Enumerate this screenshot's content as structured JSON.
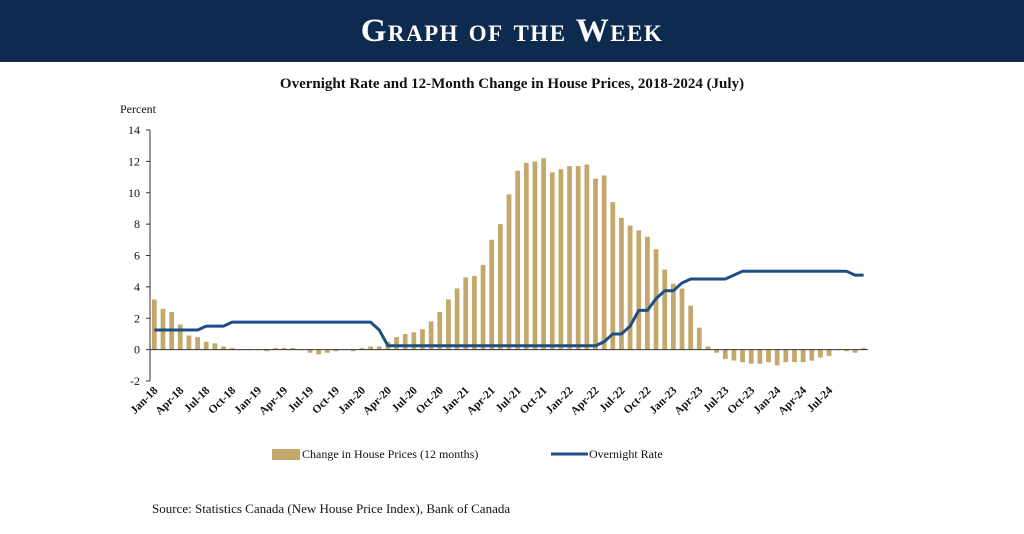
{
  "banner": {
    "title": "Graph of the Week"
  },
  "source": "Source: Statistics Canada (New House Price Index), Bank of Canada",
  "colors": {
    "banner": "#0f2a4f",
    "bars": "#c4a86b",
    "line": "#1d4f85"
  },
  "chart_data": {
    "type": "bar",
    "title": "Overnight Rate and 12-Month Change in House Prices, 2018-2024 (July)",
    "ylabel": "Percent",
    "ylim": [
      -2,
      14
    ],
    "yticks": [
      14,
      12,
      10,
      8,
      6,
      4,
      2,
      0,
      -2
    ],
    "grid": false,
    "legend_position": "bottom",
    "x_tick_labels": [
      "Jan-18",
      "Apr-18",
      "Jul-18",
      "Oct-18",
      "Jan-19",
      "Apr-19",
      "Jul-19",
      "Oct-19",
      "Jan-20",
      "Apr-20",
      "Jul-20",
      "Oct-20",
      "Jan-21",
      "Apr-21",
      "Jul-21",
      "Oct-21",
      "Jan-22",
      "Apr-22",
      "Jul-22",
      "Oct-22",
      "Jan-23",
      "Apr-23",
      "Jul-23",
      "Oct-23",
      "Jan-24",
      "Apr-24",
      "Jul-24"
    ],
    "series": [
      {
        "name": "Change in House Prices (12 months)",
        "type": "bar",
        "values": [
          3.2,
          2.6,
          2.4,
          1.6,
          0.9,
          0.8,
          0.5,
          0.4,
          0.2,
          0.1,
          0.0,
          0.0,
          0.0,
          -0.1,
          0.1,
          0.1,
          0.1,
          0.0,
          -0.2,
          -0.3,
          -0.2,
          -0.1,
          0.0,
          -0.1,
          0.1,
          0.2,
          0.2,
          0.5,
          0.8,
          1.0,
          1.1,
          1.3,
          1.8,
          2.4,
          3.2,
          3.9,
          4.6,
          4.7,
          5.4,
          7.0,
          8.0,
          9.9,
          11.4,
          11.9,
          12.0,
          12.2,
          11.3,
          11.5,
          11.7,
          11.7,
          11.8,
          10.9,
          11.1,
          9.4,
          8.4,
          7.9,
          7.6,
          7.2,
          6.4,
          5.1,
          4.2,
          3.9,
          2.8,
          1.4,
          0.2,
          -0.2,
          -0.6,
          -0.7,
          -0.8,
          -0.9,
          -0.9,
          -0.8,
          -1.0,
          -0.8,
          -0.8,
          -0.8,
          -0.7,
          -0.5,
          -0.4,
          0.0,
          -0.1,
          -0.2,
          0.1
        ]
      },
      {
        "name": "Overnight Rate",
        "type": "line",
        "values": [
          1.25,
          1.25,
          1.25,
          1.25,
          1.25,
          1.25,
          1.5,
          1.5,
          1.5,
          1.75,
          1.75,
          1.75,
          1.75,
          1.75,
          1.75,
          1.75,
          1.75,
          1.75,
          1.75,
          1.75,
          1.75,
          1.75,
          1.75,
          1.75,
          1.75,
          1.75,
          1.25,
          0.25,
          0.25,
          0.25,
          0.25,
          0.25,
          0.25,
          0.25,
          0.25,
          0.25,
          0.25,
          0.25,
          0.25,
          0.25,
          0.25,
          0.25,
          0.25,
          0.25,
          0.25,
          0.25,
          0.25,
          0.25,
          0.25,
          0.25,
          0.25,
          0.25,
          0.5,
          1.0,
          1.0,
          1.5,
          2.5,
          2.5,
          3.25,
          3.75,
          3.75,
          4.25,
          4.5,
          4.5,
          4.5,
          4.5,
          4.5,
          4.75,
          5.0,
          5.0,
          5.0,
          5.0,
          5.0,
          5.0,
          5.0,
          5.0,
          5.0,
          5.0,
          5.0,
          5.0,
          5.0,
          4.75,
          4.75
        ]
      }
    ]
  }
}
